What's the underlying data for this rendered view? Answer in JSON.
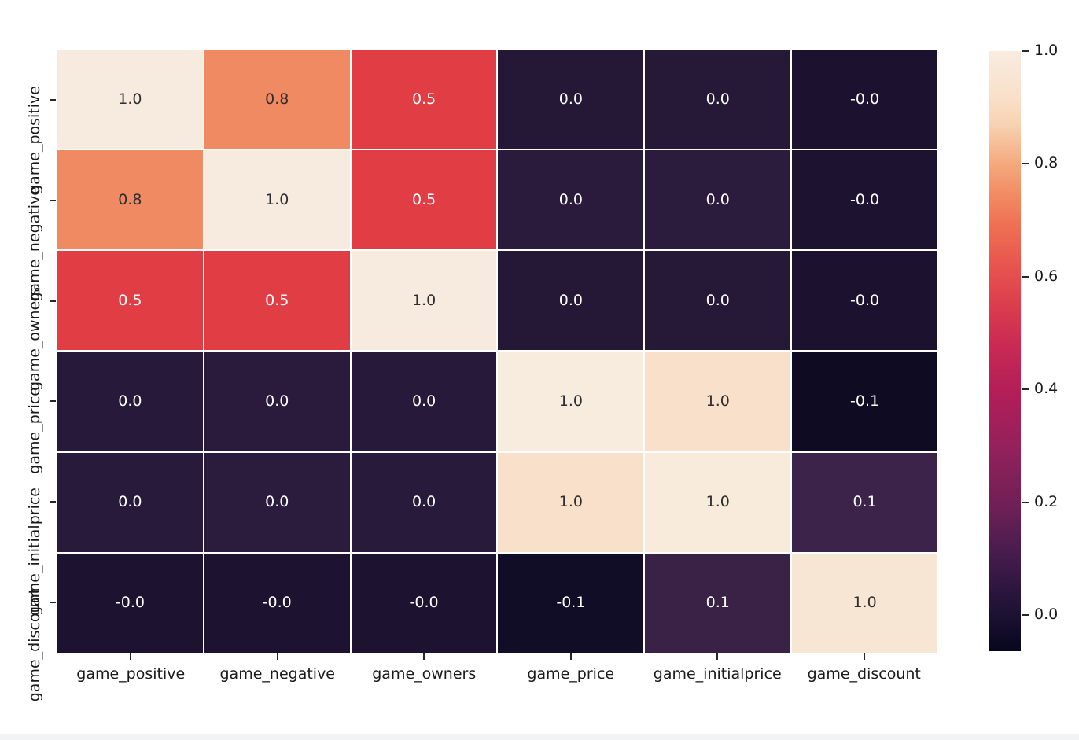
{
  "page": {
    "background": "#ffffff",
    "bottom_strip_color": "#f1f3f5",
    "bottom_strip_border": "#e2e5e9"
  },
  "chart_data": {
    "type": "heatmap",
    "title": "",
    "xlabel": "",
    "ylabel": "",
    "colormap": "rocket",
    "grid_line_color": "#ffffff",
    "legend_position": "right",
    "categories": [
      "game_positive",
      "game_negative",
      "game_owners",
      "game_price",
      "game_initialprice",
      "game_discount"
    ],
    "x_tick_labels": [
      "game_positive",
      "game_negative",
      "game_owners",
      "game_price",
      "game_initialprice",
      "game_discount"
    ],
    "y_tick_labels": [
      "game_positive",
      "game_negative",
      "game_owners",
      "game_price",
      "game_initialprice",
      "game_discount"
    ],
    "matrix_labels": [
      [
        "1.0",
        "0.8",
        "0.5",
        "0.0",
        "0.0",
        "-0.0"
      ],
      [
        "0.8",
        "1.0",
        "0.5",
        "0.0",
        "0.0",
        "-0.0"
      ],
      [
        "0.5",
        "0.5",
        "1.0",
        "0.0",
        "0.0",
        "-0.0"
      ],
      [
        "0.0",
        "0.0",
        "0.0",
        "1.0",
        "1.0",
        "-0.1"
      ],
      [
        "0.0",
        "0.0",
        "0.0",
        "1.0",
        "1.0",
        "0.1"
      ],
      [
        "-0.0",
        "-0.0",
        "-0.0",
        "-0.1",
        "0.1",
        "1.0"
      ]
    ],
    "matrix_values": [
      [
        1.0,
        0.8,
        0.5,
        0.0,
        0.0,
        0.0
      ],
      [
        0.8,
        1.0,
        0.5,
        0.0,
        0.0,
        0.0
      ],
      [
        0.5,
        0.5,
        1.0,
        0.0,
        0.0,
        0.0
      ],
      [
        0.0,
        0.0,
        0.0,
        1.0,
        1.0,
        -0.1
      ],
      [
        0.0,
        0.0,
        0.0,
        1.0,
        1.0,
        0.1
      ],
      [
        0.0,
        0.0,
        0.0,
        -0.1,
        0.1,
        1.0
      ]
    ],
    "cell_colors": [
      [
        "#f7ebdf",
        "#f08a62",
        "#e13d44",
        "#251736",
        "#261837",
        "#1d1130"
      ],
      [
        "#f08a62",
        "#f7ebdf",
        "#e13d44",
        "#2a1b3c",
        "#2b1c3d",
        "#1e1231"
      ],
      [
        "#e13d44",
        "#e13d44",
        "#f7ebdf",
        "#251736",
        "#261837",
        "#1d1130"
      ],
      [
        "#271939",
        "#2a1b3c",
        "#271939",
        "#f8ecde",
        "#f8e0ca",
        "#0e0b23"
      ],
      [
        "#281a3a",
        "#2b1c3d",
        "#281a3a",
        "#f8e0ca",
        "#f8ebdc",
        "#3c2349"
      ],
      [
        "#1e1231",
        "#1e1231",
        "#1e1231",
        "#110d26",
        "#3a2146",
        "#f8e6d4"
      ]
    ],
    "annot_text_tone": [
      [
        "dark",
        "dark",
        "light",
        "light",
        "light",
        "light"
      ],
      [
        "dark",
        "dark",
        "light",
        "light",
        "light",
        "light"
      ],
      [
        "light",
        "light",
        "dark",
        "light",
        "light",
        "light"
      ],
      [
        "light",
        "light",
        "light",
        "dark",
        "dark",
        "light"
      ],
      [
        "light",
        "light",
        "light",
        "dark",
        "dark",
        "light"
      ],
      [
        "light",
        "light",
        "light",
        "light",
        "light",
        "dark"
      ]
    ],
    "annot_colors": {
      "dark": "#2e2e2e",
      "light": "#ffffff"
    },
    "colorbar": {
      "tick_labels": [
        "1.0",
        "0.8",
        "0.6",
        "0.4",
        "0.2",
        "0.0"
      ],
      "value_range": [
        -0.06,
        1.0
      ],
      "gradient_stops": [
        {
          "pos": 0,
          "color": "#f7ece1"
        },
        {
          "pos": 7,
          "color": "#f9e1cb"
        },
        {
          "pos": 12,
          "color": "#f7d4b4"
        },
        {
          "pos": 19,
          "color": "#f4a87c"
        },
        {
          "pos": 24,
          "color": "#f18b63"
        },
        {
          "pos": 29,
          "color": "#ee7053"
        },
        {
          "pos": 36,
          "color": "#e7544f"
        },
        {
          "pos": 43,
          "color": "#da3b4e"
        },
        {
          "pos": 49,
          "color": "#c92a53"
        },
        {
          "pos": 57,
          "color": "#b21e58"
        },
        {
          "pos": 66,
          "color": "#94215b"
        },
        {
          "pos": 76,
          "color": "#6e2055"
        },
        {
          "pos": 83,
          "color": "#4b1c4e"
        },
        {
          "pos": 89,
          "color": "#2f1740"
        },
        {
          "pos": 94,
          "color": "#1c1132"
        },
        {
          "pos": 100,
          "color": "#06071d"
        }
      ]
    }
  }
}
